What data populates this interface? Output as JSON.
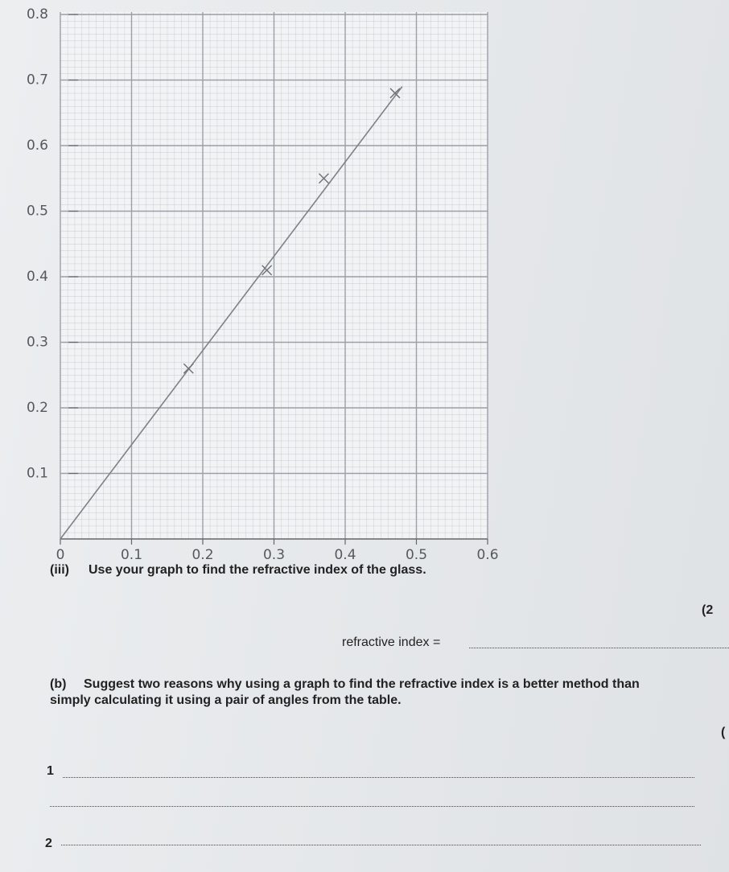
{
  "chart_data": {
    "type": "scatter",
    "xlim": [
      0,
      0.6
    ],
    "ylim": [
      0,
      0.8
    ],
    "xticks": [
      0,
      0.1,
      0.2,
      0.3,
      0.4,
      0.5,
      0.6
    ],
    "yticks": [
      0.1,
      0.2,
      0.3,
      0.4,
      0.5,
      0.6,
      0.7,
      0.8
    ],
    "grid": true,
    "series": [
      {
        "marker": "x",
        "color": "#6f747a",
        "x": [
          0.18,
          0.29,
          0.37,
          0.47
        ],
        "values": [
          0.26,
          0.41,
          0.55,
          0.68
        ]
      }
    ],
    "fit_line": {
      "color": "#7d8288",
      "x": [
        0,
        0.48
      ],
      "values": [
        0,
        0.69
      ]
    }
  },
  "question_iii": {
    "label": "(iii)",
    "text": "Use your graph to find the refractive index of the glass."
  },
  "marks_iii": "(2",
  "answer_label": "refractive index =",
  "question_b": {
    "label": "(b)",
    "text": "Suggest two reasons why using a graph to find the refractive index is a better method than",
    "text_2": "simply calculating it using a pair of angles from the table."
  },
  "marks_b": "(",
  "answers": [
    "1",
    "2"
  ]
}
